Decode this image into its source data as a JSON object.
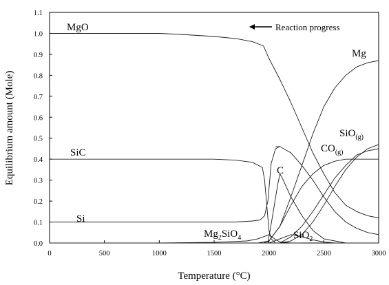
{
  "chart_data": {
    "type": "line",
    "xlabel": "Temperature (°C)",
    "ylabel": "Equilibrium amount (Mole)",
    "xlim": [
      0,
      3000
    ],
    "ylim": [
      0,
      1.1
    ],
    "xticks": [
      0,
      500,
      1000,
      1500,
      2000,
      2500,
      3000
    ],
    "yticks": [
      0.0,
      0.1,
      0.2,
      0.3,
      0.4,
      0.5,
      0.6,
      0.7,
      0.8,
      0.9,
      1.0,
      1.1
    ],
    "ytick_labels": [
      "0.0",
      "0.1",
      "0.2",
      "0.3",
      "0.4",
      "0.5",
      "0.6",
      "0.7",
      "0.8",
      "0.9",
      "1.0",
      "1.1"
    ],
    "grid": false,
    "annotation": "Reaction progress",
    "annotation_arrow": "left",
    "labels": {
      "MgO": "MgO",
      "Mg": "Mg",
      "SiC": "SiC",
      "Si": "Si",
      "C": "C",
      "Mg2SiO4_main": "Mg",
      "Mg2SiO4_sub1": "2",
      "Mg2SiO4_mid": "SiO",
      "Mg2SiO4_sub2": "4",
      "SiO2_main": "SiO",
      "SiO2_sub": "2",
      "SiOg_main": "SiO",
      "SiOg_sub": "(g)",
      "COg_main": "CO",
      "COg_sub": "(g)"
    },
    "series": [
      {
        "id": "MgO",
        "x": [
          0,
          500,
          1000,
          1200,
          1500,
          1700,
          1850,
          1950,
          2000,
          2100,
          2200,
          2300,
          2400,
          2500,
          2600,
          2700,
          2800,
          2900,
          3000
        ],
        "y": [
          1.0,
          1.0,
          1.0,
          0.995,
          0.985,
          0.975,
          0.96,
          0.94,
          0.88,
          0.78,
          0.67,
          0.55,
          0.43,
          0.33,
          0.24,
          0.18,
          0.15,
          0.13,
          0.12
        ]
      },
      {
        "id": "Mg",
        "x": [
          0,
          1000,
          1900,
          2000,
          2100,
          2200,
          2300,
          2400,
          2500,
          2600,
          2700,
          2800,
          2900,
          3000
        ],
        "y": [
          0.0,
          0.0,
          0.0,
          0.01,
          0.08,
          0.22,
          0.37,
          0.52,
          0.65,
          0.74,
          0.8,
          0.84,
          0.86,
          0.87
        ]
      },
      {
        "id": "SiC",
        "x": [
          0,
          500,
          1000,
          1500,
          1700,
          1850,
          1940,
          1960,
          1990,
          2000,
          2020,
          2060
        ],
        "y": [
          0.4,
          0.4,
          0.4,
          0.4,
          0.395,
          0.385,
          0.36,
          0.3,
          0.12,
          0.06,
          0.02,
          0.0
        ]
      },
      {
        "id": "Si",
        "x": [
          0,
          500,
          1000,
          1500,
          1700,
          1850,
          1920,
          1960,
          1990,
          2020,
          2060,
          2100
        ],
        "y": [
          0.1,
          0.1,
          0.1,
          0.1,
          0.1,
          0.105,
          0.11,
          0.13,
          0.2,
          0.38,
          0.45,
          0.46
        ]
      },
      {
        "id": "C",
        "x": [
          1990,
          2030,
          2080,
          2100,
          2130,
          2200,
          2300,
          2400,
          2500,
          2600,
          2700,
          2800,
          2900,
          3000
        ],
        "y": [
          0.0,
          0.12,
          0.28,
          0.33,
          0.3,
          0.22,
          0.13,
          0.06,
          0.02,
          0.01,
          0.0,
          0.0,
          0.0,
          0.0
        ]
      },
      {
        "id": "C_upper",
        "x": [
          2060,
          2100,
          2200,
          2300,
          2400,
          2500,
          2600,
          2700,
          2800,
          2900,
          3000
        ],
        "y": [
          0.46,
          0.46,
          0.43,
          0.37,
          0.3,
          0.22,
          0.15,
          0.1,
          0.07,
          0.05,
          0.04
        ]
      },
      {
        "id": "Mg2SiO4",
        "x": [
          0,
          1000,
          1500,
          1800,
          1900,
          1950,
          2000,
          2050,
          2100,
          2200,
          2300
        ],
        "y": [
          0.0,
          0.0,
          0.003,
          0.01,
          0.02,
          0.03,
          0.04,
          0.02,
          0.005,
          0.0,
          0.0
        ]
      },
      {
        "id": "SiO2",
        "x": [
          1900,
          2000,
          2100,
          2200,
          2300,
          2400,
          2500,
          2600,
          2700
        ],
        "y": [
          0.0,
          0.0,
          0.02,
          0.04,
          0.03,
          0.015,
          0.005,
          0.0,
          0.0
        ]
      },
      {
        "id": "SiOg",
        "x": [
          2000,
          2100,
          2200,
          2300,
          2400,
          2500,
          2600,
          2700,
          2800,
          2900,
          3000
        ],
        "y": [
          0.0,
          0.0,
          0.01,
          0.04,
          0.1,
          0.18,
          0.27,
          0.35,
          0.41,
          0.45,
          0.47
        ]
      },
      {
        "id": "COg",
        "x": [
          1950,
          2000,
          2100,
          2200,
          2300,
          2400,
          2500,
          2600,
          2700,
          2800,
          2900,
          3000
        ],
        "y": [
          0.0,
          0.01,
          0.08,
          0.18,
          0.27,
          0.33,
          0.37,
          0.39,
          0.4,
          0.4,
          0.4,
          0.4
        ]
      },
      {
        "id": "CO_alt",
        "x": [
          2100,
          2200,
          2300,
          2400,
          2500,
          2600,
          2700,
          2800,
          2900,
          3000
        ],
        "y": [
          0.0,
          0.03,
          0.08,
          0.15,
          0.23,
          0.31,
          0.37,
          0.42,
          0.44,
          0.45
        ]
      }
    ]
  }
}
